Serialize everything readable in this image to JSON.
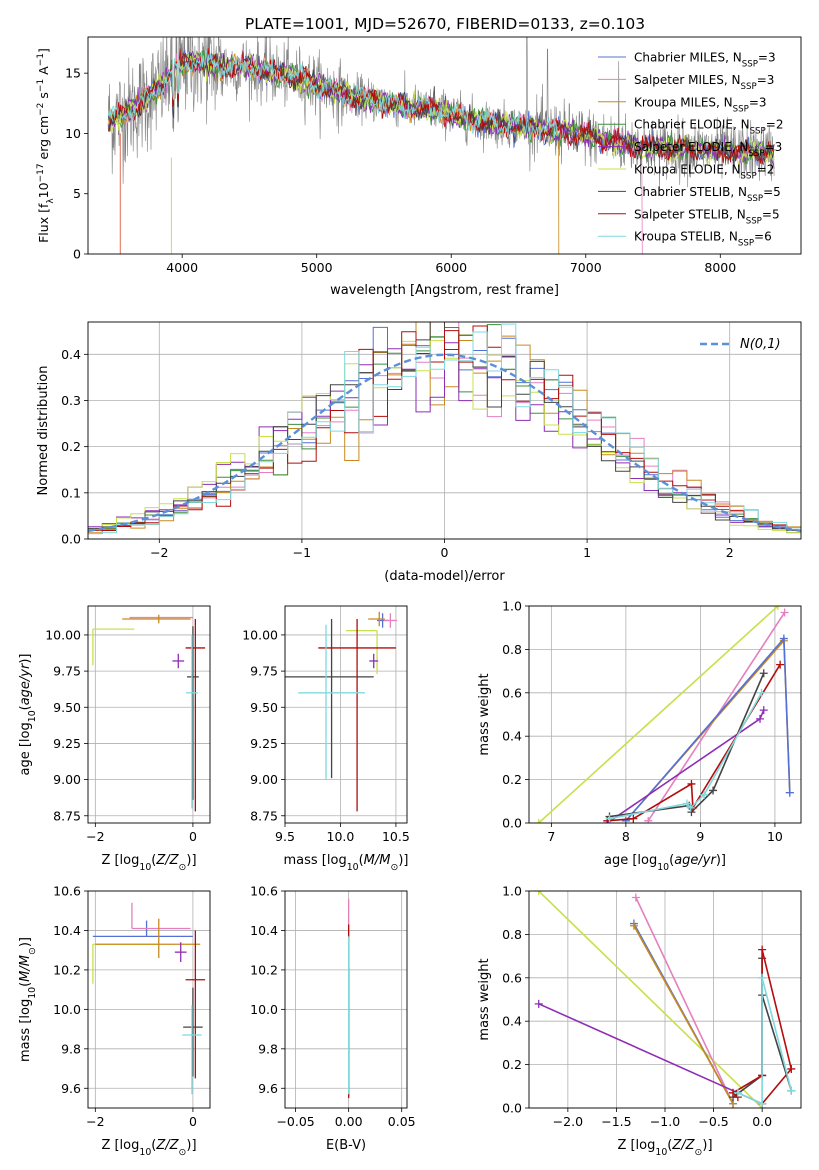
{
  "figure": {
    "title": "PLATE=1001, MJD=52670, FIBERID=0133, z=0.103"
  },
  "models": [
    {
      "name": "Chabrier MILES",
      "nssp": "3",
      "color": "#5470d6"
    },
    {
      "name": "Salpeter MILES",
      "nssp": "3",
      "color": "#e57fc0"
    },
    {
      "name": "Kroupa MILES",
      "nssp": "3",
      "color": "#c88a1e"
    },
    {
      "name": "Chabrier ELODIE",
      "nssp": "2",
      "color": "#3d8f3d"
    },
    {
      "name": "Salpeter ELODIE",
      "nssp": "3",
      "color": "#8e2db5"
    },
    {
      "name": "Kroupa ELODIE",
      "nssp": "2",
      "color": "#c8e04a"
    },
    {
      "name": "Chabrier STELIB",
      "nssp": "5",
      "color": "#444444"
    },
    {
      "name": "Salpeter STELIB",
      "nssp": "5",
      "color": "#b30d0d"
    },
    {
      "name": "Kroupa STELIB",
      "nssp": "6",
      "color": "#7fd9dd"
    }
  ],
  "legend_entries": [
    "Chabrier MILES, N_SSP=3",
    "Salpeter MILES, N_SSP=3",
    "Kroupa MILES, N_SSP=3",
    "Chabrier ELODIE, N_SSP=2",
    "Salpeter ELODIE, N_SSP=3",
    "Kroupa ELODIE, N_SSP=2",
    "Chabrier STELIB, N_SSP=5",
    "Salpeter STELIB, N_SSP=5",
    "Kroupa STELIB, N_SSP=6"
  ],
  "chart_data": [
    {
      "id": "spectrum",
      "type": "line",
      "title": "PLATE=1001, MJD=52670, FIBERID=0133, z=0.103",
      "xlabel": "wavelength [Angstrom, rest frame]",
      "ylabel": "Flux [f_λ 10^-17 erg cm^-2 s^-1 A^-1]",
      "xlim": [
        3300,
        8600
      ],
      "ylim": [
        0,
        18
      ],
      "xticks": [
        4000,
        5000,
        6000,
        7000,
        8000
      ],
      "yticks": [
        0,
        5,
        10,
        15
      ],
      "grid": false,
      "legend_position": "upper-right",
      "observed_color": "#808080",
      "observed_continuum": [
        [
          3450,
          11.0
        ],
        [
          3600,
          11.8
        ],
        [
          3750,
          13.0
        ],
        [
          3850,
          14.0
        ],
        [
          3950,
          15.6
        ],
        [
          4100,
          16.0
        ],
        [
          4300,
          15.5
        ],
        [
          4500,
          15.5
        ],
        [
          4700,
          15.0
        ],
        [
          4900,
          14.5
        ],
        [
          5100,
          13.6
        ],
        [
          5300,
          13.0
        ],
        [
          5500,
          12.6
        ],
        [
          5700,
          12.2
        ],
        [
          5900,
          11.9
        ],
        [
          6100,
          11.3
        ],
        [
          6300,
          10.8
        ],
        [
          6500,
          10.6
        ],
        [
          6700,
          10.3
        ],
        [
          6900,
          10.0
        ],
        [
          7100,
          9.6
        ],
        [
          7300,
          9.1
        ],
        [
          7500,
          8.8
        ],
        [
          7700,
          8.7
        ],
        [
          7900,
          8.6
        ],
        [
          8100,
          8.5
        ],
        [
          8300,
          8.4
        ]
      ],
      "observed_range": [
        3450,
        8400
      ]
    },
    {
      "id": "residuals",
      "type": "line",
      "xlabel": "(data-model)/error",
      "ylabel": "Normed distribution",
      "xlim": [
        -2.5,
        2.5
      ],
      "ylim": [
        0,
        0.47
      ],
      "xticks": [
        -2,
        -1,
        0,
        1,
        2
      ],
      "yticks": [
        0.0,
        0.1,
        0.2,
        0.3,
        0.4
      ],
      "grid": true,
      "legend_label": "N(0,1)",
      "legend_position": "upper-right",
      "gaussian_color": "#5b8fd6",
      "bins": 50
    },
    {
      "id": "age-vs-metallicity",
      "type": "scatter",
      "xlabel": "Z [log10(Z/Z☉)]",
      "ylabel": "age [log10(age/yr)]",
      "xlim": [
        -2.15,
        0.35
      ],
      "ylim": [
        8.7,
        10.2
      ],
      "xticks": [
        -2,
        0
      ],
      "yticks": [
        8.75,
        9.0,
        9.25,
        9.5,
        9.75,
        10.0
      ],
      "grid": true,
      "points": [
        {
          "model": "Kroupa ELODIE",
          "x": -2.05,
          "x_err": [
            0.0,
            0.85
          ],
          "y": 10.04,
          "y_err": [
            0.25,
            0.0
          ]
        },
        {
          "model": "Salpeter MILES",
          "x": -0.95,
          "x_err": [
            0.35,
            0.95
          ],
          "y": 10.12,
          "y_err": [
            0.0,
            0.0
          ]
        },
        {
          "model": "Kroupa MILES",
          "x": -0.7,
          "x_err": [
            0.75,
            0.65
          ],
          "y": 10.11,
          "y_err": [
            0.03,
            0.03
          ]
        },
        {
          "model": "Chabrier MILES",
          "x": -0.1,
          "x_err": [
            0.0,
            0.0
          ],
          "y": 10.1,
          "y_err": [
            0.0,
            0.0
          ]
        },
        {
          "model": "Salpeter ELODIE",
          "x": -0.3,
          "x_err": [
            0.12,
            0.12
          ],
          "y": 9.82,
          "y_err": [
            0.05,
            0.05
          ]
        },
        {
          "model": "Chabrier STELIB",
          "x": 0.0,
          "x_err": [
            0.12,
            0.12
          ],
          "y": 9.71,
          "y_err": [
            0.85,
            0.35
          ]
        },
        {
          "model": "Salpeter STELIB",
          "x": 0.05,
          "x_err": [
            0.2,
            0.2
          ],
          "y": 9.91,
          "y_err": [
            1.13,
            0.2
          ]
        },
        {
          "model": "Kroupa STELIB",
          "x": -0.02,
          "x_err": [
            0.12,
            0.12
          ],
          "y": 9.6,
          "y_err": [
            0.8,
            0.4
          ]
        }
      ]
    },
    {
      "id": "age-vs-mass",
      "type": "scatter",
      "xlabel": "mass [log10(M/M☉)]",
      "ylabel": "",
      "xlim": [
        9.5,
        10.6
      ],
      "ylim": [
        8.7,
        10.2
      ],
      "xticks": [
        9.5,
        10.0,
        10.5
      ],
      "yticks": [
        8.75,
        9.0,
        9.25,
        9.5,
        9.75,
        10.0
      ],
      "grid": true,
      "points": [
        {
          "model": "Chabrier MILES",
          "x": 10.38,
          "x_err": [
            0.05,
            0.05
          ],
          "y": 10.1,
          "y_err": [
            0.05,
            0.05
          ]
        },
        {
          "model": "Salpeter MILES",
          "x": 10.45,
          "x_err": [
            0.06,
            0.06
          ],
          "y": 10.1,
          "y_err": [
            0.05,
            0.05
          ]
        },
        {
          "model": "Kroupa MILES",
          "x": 10.35,
          "x_err": [
            0.1,
            0.05
          ],
          "y": 10.11,
          "y_err": [
            0.05,
            0.05
          ]
        },
        {
          "model": "Kroupa ELODIE",
          "x": 10.33,
          "x_err": [
            0.28,
            0.0
          ],
          "y": 10.03,
          "y_err": [
            0.3,
            0.0
          ]
        },
        {
          "model": "Salpeter ELODIE",
          "x": 10.3,
          "x_err": [
            0.04,
            0.04
          ],
          "y": 9.82,
          "y_err": [
            0.05,
            0.05
          ]
        },
        {
          "model": "Chabrier STELIB",
          "x": 9.92,
          "x_err": [
            0.42,
            0.38
          ],
          "y": 9.71,
          "y_err": [
            0.7,
            0.4
          ]
        },
        {
          "model": "Salpeter STELIB",
          "x": 10.15,
          "x_err": [
            0.35,
            0.35
          ],
          "y": 9.91,
          "y_err": [
            1.13,
            0.2
          ]
        },
        {
          "model": "Kroupa STELIB",
          "x": 9.87,
          "x_err": [
            0.25,
            0.35
          ],
          "y": 9.6,
          "y_err": [
            0.6,
            0.47
          ]
        }
      ]
    },
    {
      "id": "mass-weight-vs-age",
      "type": "line",
      "xlabel": "age [log10(age/yr)]",
      "ylabel": "mass weight",
      "xlim": [
        6.7,
        10.35
      ],
      "ylim": [
        0,
        1
      ],
      "xticks": [
        7,
        8,
        9,
        10
      ],
      "yticks": [
        0.0,
        0.2,
        0.4,
        0.6,
        0.8,
        1.0
      ],
      "grid": true,
      "series": [
        {
          "model": "Kroupa ELODIE",
          "x": [
            6.83,
            10.04
          ],
          "y": [
            0.0,
            1.0
          ]
        },
        {
          "model": "Salpeter MILES",
          "x": [
            8.3,
            10.13
          ],
          "y": [
            0.01,
            0.97
          ]
        },
        {
          "model": "Kroupa MILES",
          "x": [
            8.0,
            10.12,
            10.2
          ],
          "y": [
            0.01,
            0.84,
            0.14
          ]
        },
        {
          "model": "Chabrier MILES",
          "x": [
            8.0,
            10.12,
            10.2
          ],
          "y": [
            0.01,
            0.85,
            0.14
          ]
        },
        {
          "model": "Salpeter ELODIE",
          "x": [
            7.75,
            9.8,
            9.85
          ],
          "y": [
            0.0,
            0.48,
            0.52
          ]
        },
        {
          "model": "Chabrier STELIB",
          "x": [
            7.78,
            8.85,
            8.88,
            9.17,
            9.85
          ],
          "y": [
            0.03,
            0.08,
            0.05,
            0.15,
            0.69
          ]
        },
        {
          "model": "Salpeter STELIB",
          "x": [
            7.75,
            8.1,
            8.88,
            8.9,
            10.07
          ],
          "y": [
            0.01,
            0.02,
            0.18,
            0.07,
            0.73
          ]
        },
        {
          "model": "Kroupa STELIB",
          "x": [
            7.78,
            8.82,
            8.87,
            9.05,
            9.82
          ],
          "y": [
            0.02,
            0.09,
            0.07,
            0.13,
            0.6
          ]
        }
      ]
    },
    {
      "id": "mass-vs-metallicity",
      "type": "scatter",
      "xlabel": "Z [log10(Z/Z☉)]",
      "ylabel": "mass [log10(M/M☉)]",
      "xlim": [
        -2.15,
        0.35
      ],
      "ylim": [
        9.5,
        10.6
      ],
      "xticks": [
        -2,
        0
      ],
      "yticks": [
        9.6,
        9.8,
        10.0,
        10.2,
        10.4,
        10.6
      ],
      "grid": true,
      "points": [
        {
          "model": "Kroupa ELODIE",
          "x": -2.05,
          "x_err": [
            0.0,
            1.4
          ],
          "y": 10.33,
          "y_err": [
            0.2,
            0.0
          ]
        },
        {
          "model": "Chabrier MILES",
          "x": -0.95,
          "x_err": [
            1.1,
            0.95
          ],
          "y": 10.37,
          "y_err": [
            0.0,
            0.08
          ]
        },
        {
          "model": "Salpeter MILES",
          "x": -1.25,
          "x_err": [
            0.0,
            1.2
          ],
          "y": 10.41,
          "y_err": [
            0.0,
            0.13
          ]
        },
        {
          "model": "Kroupa MILES",
          "x": -0.7,
          "x_err": [
            1.3,
            0.85
          ],
          "y": 10.33,
          "y_err": [
            0.07,
            0.13
          ]
        },
        {
          "model": "Salpeter ELODIE",
          "x": -0.25,
          "x_err": [
            0.12,
            0.12
          ],
          "y": 10.29,
          "y_err": [
            0.05,
            0.05
          ]
        },
        {
          "model": "Chabrier STELIB",
          "x": 0.0,
          "x_err": [
            0.2,
            0.2
          ],
          "y": 9.91,
          "y_err": [
            0.25,
            0.2
          ]
        },
        {
          "model": "Salpeter STELIB",
          "x": 0.05,
          "x_err": [
            0.2,
            0.2
          ],
          "y": 10.15,
          "y_err": [
            0.5,
            0.25
          ]
        },
        {
          "model": "Kroupa STELIB",
          "x": -0.02,
          "x_err": [
            0.2,
            0.2
          ],
          "y": 9.87,
          "y_err": [
            0.3,
            0.15
          ]
        }
      ]
    },
    {
      "id": "mass-vs-ebv",
      "type": "scatter",
      "xlabel": "E(B-V)",
      "ylabel": "",
      "xlim": [
        -0.06,
        0.055
      ],
      "ylim": [
        9.5,
        10.6
      ],
      "xticks": [
        -0.05,
        0.0,
        0.05
      ],
      "yticks": [
        9.6,
        9.8,
        10.0,
        10.2,
        10.4,
        10.6
      ],
      "grid": true,
      "points": [
        {
          "model": "Salpeter MILES",
          "x": 0.0,
          "x_err": [
            0,
            0
          ],
          "y": 10.41,
          "y_err": [
            0.06,
            0.15
          ]
        },
        {
          "model": "Chabrier STELIB",
          "x": 0.0,
          "x_err": [
            0,
            0
          ],
          "y": 9.91,
          "y_err": [
            0.35,
            0.3
          ]
        },
        {
          "model": "Salpeter STELIB",
          "x": 0.0,
          "x_err": [
            0,
            0
          ],
          "y": 10.15,
          "y_err": [
            0.6,
            0.28
          ]
        },
        {
          "model": "Kroupa STELIB",
          "x": 0.0,
          "x_err": [
            0,
            0
          ],
          "y": 9.87,
          "y_err": [
            0.3,
            0.5
          ]
        }
      ]
    },
    {
      "id": "mass-weight-vs-metallicity",
      "type": "line",
      "xlabel": "Z [log10(Z/Z☉)]",
      "ylabel": "mass weight",
      "xlim": [
        -2.4,
        0.4
      ],
      "ylim": [
        0,
        1
      ],
      "xticks": [
        -2.0,
        -1.5,
        -1.0,
        -0.5,
        0.0
      ],
      "yticks": [
        0.0,
        0.2,
        0.4,
        0.6,
        0.8,
        1.0
      ],
      "grid": true,
      "series": [
        {
          "model": "Kroupa ELODIE",
          "x": [
            -2.3,
            0.0
          ],
          "y": [
            1.0,
            0.0
          ]
        },
        {
          "model": "Salpeter MILES",
          "x": [
            -1.3,
            -0.3
          ],
          "y": [
            0.97,
            0.02
          ]
        },
        {
          "model": "Chabrier MILES",
          "x": [
            -1.32,
            -0.3
          ],
          "y": [
            0.85,
            0.02
          ]
        },
        {
          "model": "Kroupa MILES",
          "x": [
            -1.32,
            -0.3
          ],
          "y": [
            0.84,
            0.02
          ]
        },
        {
          "model": "Salpeter ELODIE",
          "x": [
            -2.3,
            0.0
          ],
          "y": [
            0.48,
            0.02
          ]
        },
        {
          "model": "Chabrier STELIB",
          "x": [
            -0.3,
            0.0,
            0.0,
            0.0,
            0.3
          ],
          "y": [
            0.05,
            0.15,
            0.69,
            0.52,
            0.08
          ]
        },
        {
          "model": "Salpeter STELIB",
          "x": [
            -0.25,
            -0.3,
            0.0,
            0.0,
            0.3,
            0.0
          ],
          "y": [
            0.05,
            0.07,
            0.15,
            0.73,
            0.18,
            0.02
          ]
        },
        {
          "model": "Kroupa STELIB",
          "x": [
            -0.25,
            0.0,
            0.0,
            0.3
          ],
          "y": [
            0.07,
            0.02,
            0.6,
            0.08
          ]
        }
      ]
    }
  ]
}
